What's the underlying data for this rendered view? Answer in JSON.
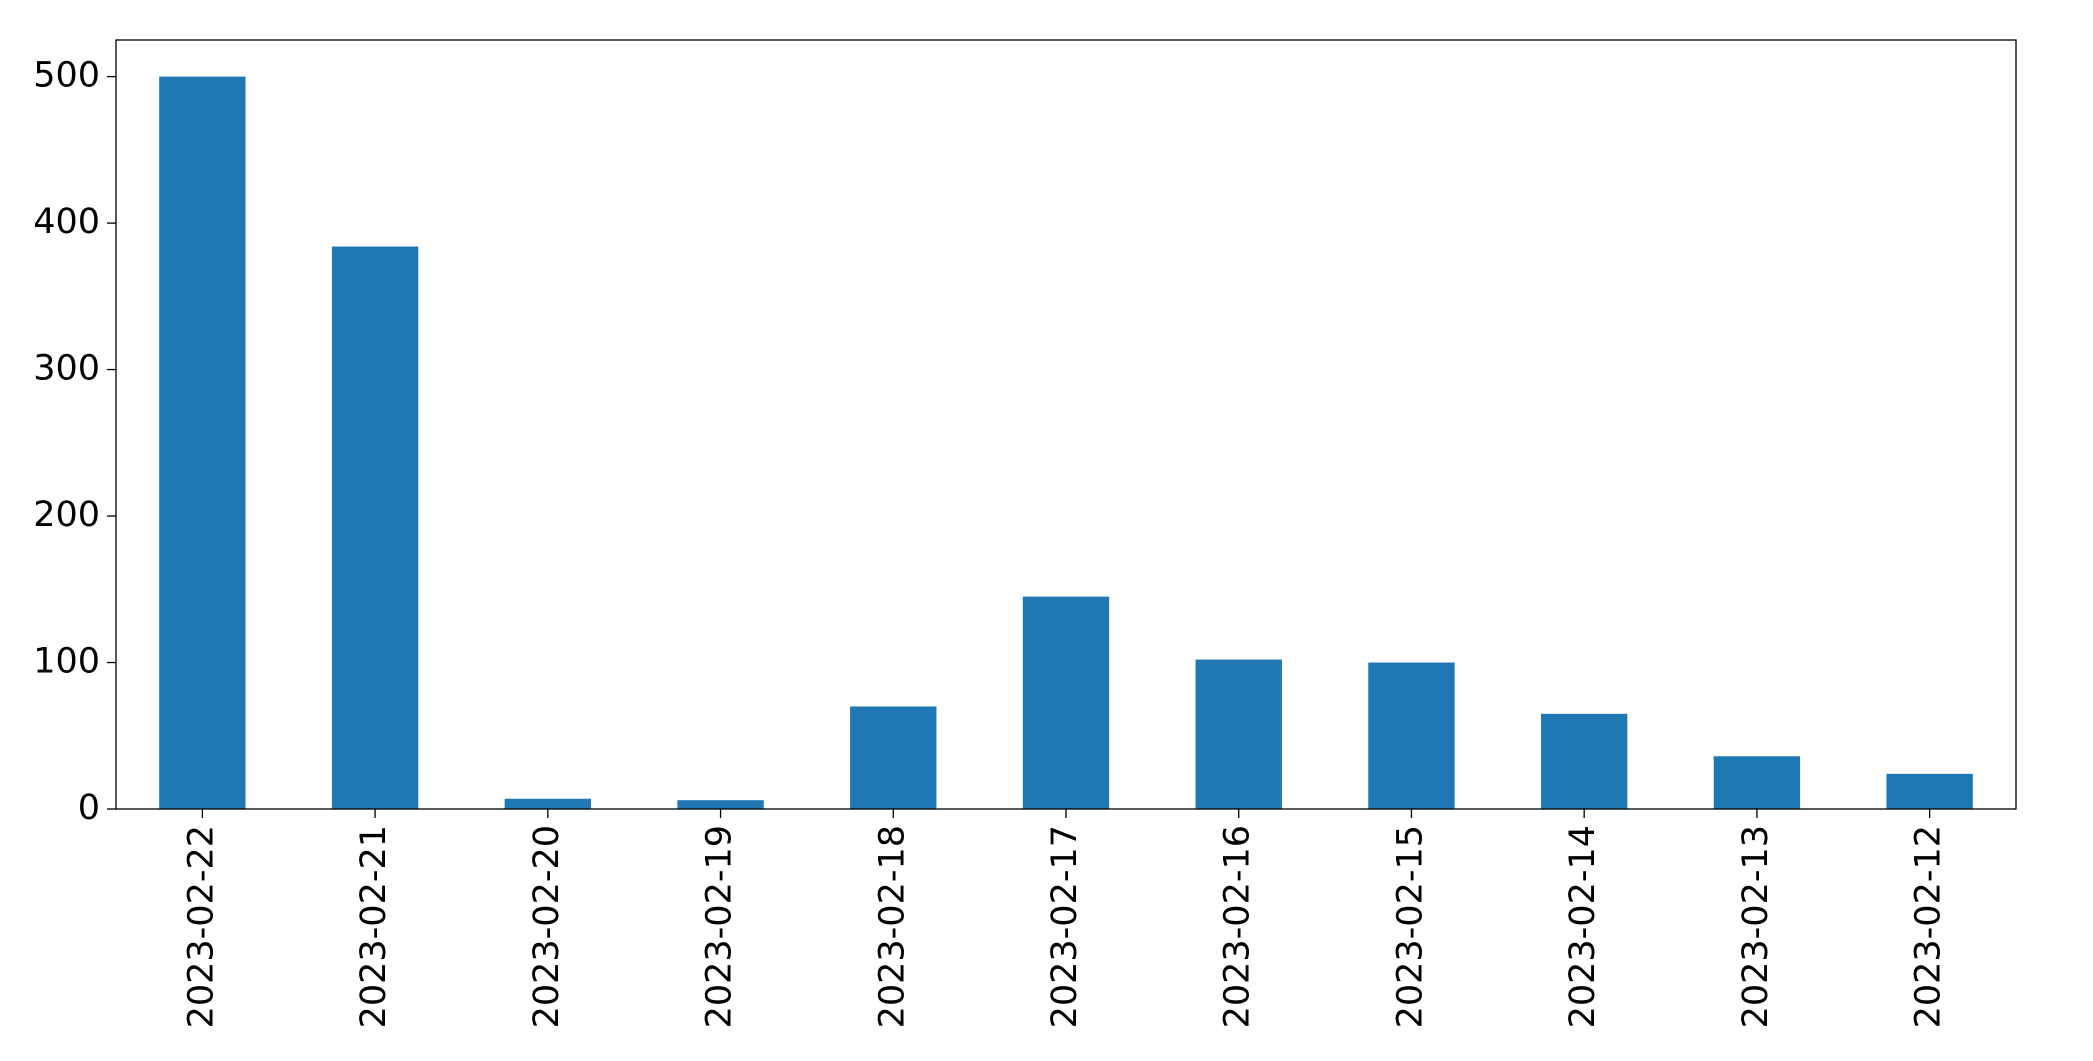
{
  "chart_data": {
    "type": "bar",
    "categories": [
      "2023-02-22",
      "2023-02-21",
      "2023-02-20",
      "2023-02-19",
      "2023-02-18",
      "2023-02-17",
      "2023-02-16",
      "2023-02-15",
      "2023-02-14",
      "2023-02-13",
      "2023-02-12"
    ],
    "values": [
      500,
      384,
      7,
      6,
      70,
      145,
      102,
      100,
      65,
      36,
      24
    ],
    "color": "#1f77b4",
    "ylim": [
      0,
      525
    ],
    "yticks": [
      0,
      100,
      200,
      300,
      400,
      500
    ],
    "grid": false
  }
}
